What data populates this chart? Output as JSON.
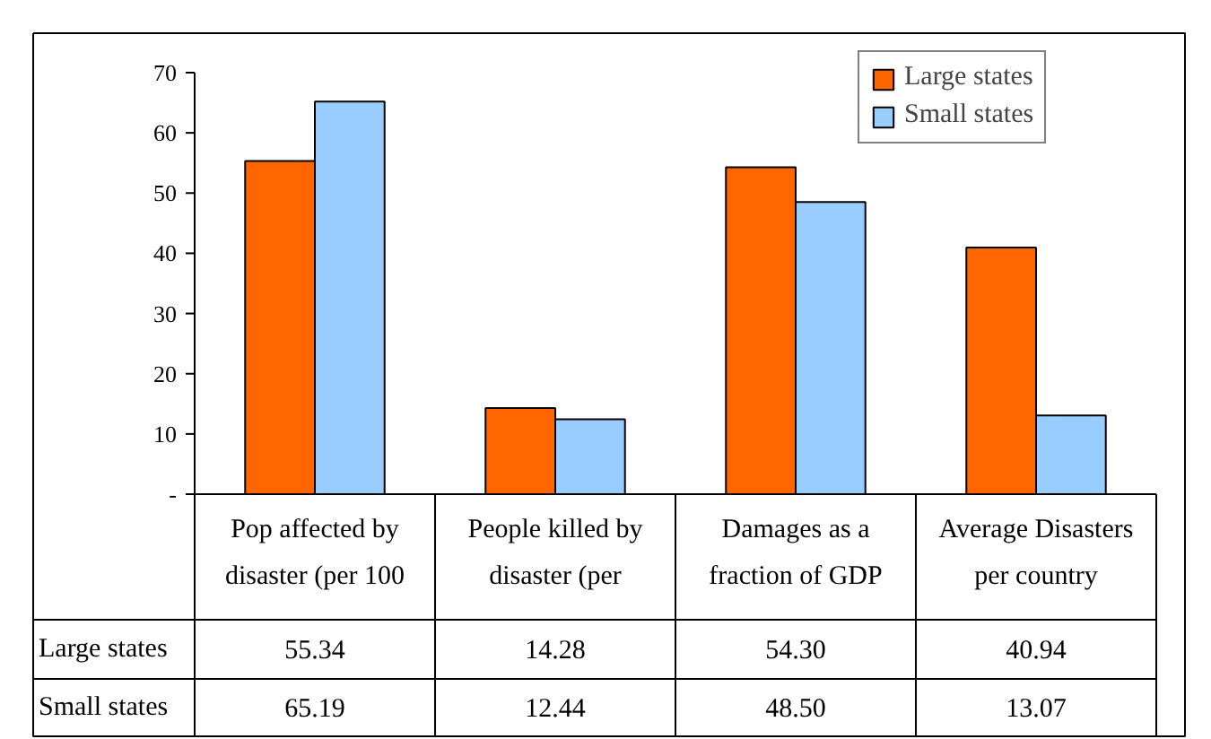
{
  "chart_data": {
    "type": "bar",
    "categories": [
      "Pop affected by\ndisaster (per 100",
      "People killed by\ndisaster (per",
      "Damages as a\nfraction of GDP",
      "Average Disasters\nper country"
    ],
    "series": [
      {
        "name": "Large states",
        "color": "#ff6600",
        "values": [
          55.34,
          14.28,
          54.3,
          40.94
        ],
        "value_labels": [
          "55.34",
          "14.28",
          "54.30",
          "40.94"
        ]
      },
      {
        "name": "Small states",
        "color": "#99ccff",
        "values": [
          65.19,
          12.44,
          48.5,
          13.07
        ],
        "value_labels": [
          "65.19",
          "12.44",
          "48.50",
          "13.07"
        ]
      }
    ],
    "ylim": [
      0,
      70
    ],
    "yticks": [
      {
        "value": 0,
        "label": "-"
      },
      10,
      20,
      30,
      40,
      50,
      60,
      70
    ],
    "legend": "top right",
    "grid": false
  }
}
